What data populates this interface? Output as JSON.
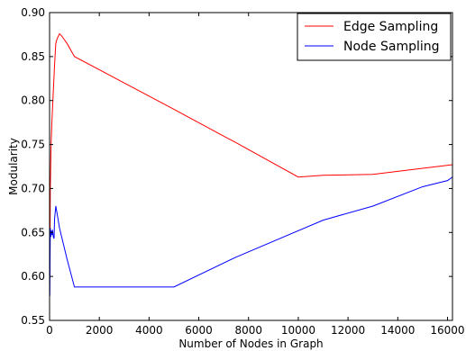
{
  "chart_data": {
    "type": "line",
    "xlabel": "Number of Nodes in Graph",
    "ylabel": "Modularity",
    "xlim": [
      0,
      16200
    ],
    "ylim": [
      0.55,
      0.9
    ],
    "xticks": [
      0,
      2000,
      4000,
      6000,
      8000,
      10000,
      12000,
      14000,
      16000
    ],
    "yticks": [
      0.55,
      0.6,
      0.65,
      0.7,
      0.75,
      0.8,
      0.85,
      0.9
    ],
    "xtick_labels": [
      "0",
      "2000",
      "4000",
      "6000",
      "8000",
      "10000",
      "12000",
      "14000",
      "16000"
    ],
    "ytick_labels": [
      "0.55",
      "0.60",
      "0.65",
      "0.70",
      "0.75",
      "0.80",
      "0.85",
      "0.90"
    ],
    "grid": false,
    "legend": "top-right",
    "series": [
      {
        "name": "Edge Sampling",
        "color": "#ff0000",
        "x": [
          10,
          30,
          60,
          100,
          150,
          200,
          250,
          300,
          400,
          500,
          700,
          1000,
          5000,
          7500,
          10000,
          11000,
          13000,
          15000,
          16200
        ],
        "y": [
          0.6,
          0.7,
          0.75,
          0.78,
          0.81,
          0.84,
          0.865,
          0.87,
          0.876,
          0.873,
          0.865,
          0.85,
          0.79,
          0.752,
          0.713,
          0.715,
          0.716,
          0.723,
          0.727
        ]
      },
      {
        "name": "Node Sampling",
        "color": "#0000ff",
        "x": [
          10,
          20,
          30,
          50,
          70,
          100,
          120,
          150,
          180,
          200,
          250,
          300,
          400,
          700,
          1000,
          5000,
          7500,
          11000,
          13000,
          15000,
          16000,
          16200
        ],
        "y": [
          0.578,
          0.62,
          0.655,
          0.645,
          0.652,
          0.647,
          0.653,
          0.645,
          0.643,
          0.665,
          0.68,
          0.672,
          0.655,
          0.62,
          0.588,
          0.588,
          0.622,
          0.664,
          0.68,
          0.702,
          0.709,
          0.713
        ]
      }
    ]
  }
}
